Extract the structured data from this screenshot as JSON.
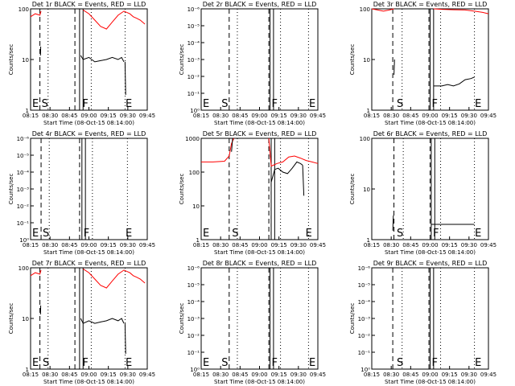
{
  "figure": {
    "panel_titles": [
      "Det 1r BLACK = Events, RED = LLD",
      "Det 2r BLACK = Events, RED = LLD",
      "Det 3r BLACK = Events, RED = LLD",
      "Det 4r BLACK = Events, RED = LLD",
      "Det 5r BLACK = Events, RED = LLD",
      "Det 6r BLACK = Events, RED = LLD",
      "Det 7r BLACK = Events, RED = LLD",
      "Det 8r BLACK = Events, RED = LLD",
      "Det 9r BLACK = Events, RED = LLD"
    ],
    "xlabel": "Start Time (08-Oct-15 08:14:00)",
    "ylabel": "Counts/sec",
    "colors": {
      "events": "#000000",
      "lld": "#ff0000",
      "background": "#ffffff"
    }
  },
  "chart_data": [
    {
      "type": "line",
      "title": "Det 1r BLACK = Events, RED = LLD",
      "ylog": true,
      "yticks": [
        "1",
        "10",
        "100"
      ],
      "ylim": [
        1,
        100
      ],
      "xticks": [
        "08:15",
        "08:30",
        "08:45",
        "09:00",
        "09:15",
        "09:30",
        "09:45"
      ],
      "xlim": [
        0,
        100
      ],
      "markers": [
        {
          "label": "E",
          "x": 0
        },
        {
          "label": "S",
          "x": 8
        },
        {
          "label": "F",
          "x": 43
        },
        {
          "label": "E",
          "x": 80
        }
      ],
      "dashed_lines": [
        8,
        38
      ],
      "solid_lines": [
        42,
        45
      ],
      "dotted_lines": [
        15,
        52,
        81
      ],
      "series": [
        {
          "color": "#ff0000",
          "x": [
            0,
            4,
            8,
            9
          ],
          "y": [
            70,
            80,
            75,
            90
          ]
        },
        {
          "color": "#ff0000",
          "x": [
            45,
            50,
            55,
            60,
            65,
            70,
            75,
            80,
            85,
            88,
            91,
            94,
            98
          ],
          "y": [
            95,
            80,
            60,
            45,
            40,
            55,
            75,
            90,
            80,
            70,
            65,
            60,
            50
          ]
        },
        {
          "color": "#000000",
          "x": [
            8.5,
            8.7
          ],
          "y": [
            12,
            18
          ]
        },
        {
          "color": "#000000",
          "x": [
            43,
            45,
            50,
            55,
            60,
            65,
            70,
            75,
            78,
            80
          ],
          "y": [
            12,
            10,
            11,
            9,
            9.5,
            10,
            11,
            10,
            11,
            9
          ]
        },
        {
          "color": "#000000",
          "x": [
            81,
            81.5
          ],
          "y": [
            9,
            2
          ]
        }
      ]
    },
    {
      "type": "line",
      "title": "Det 2r BLACK = Events, RED = LLD",
      "ylog": true,
      "yticks": [
        "10⁰",
        "10⁻¹",
        "10⁻²",
        "10⁻³",
        "10⁻⁴",
        "10⁻⁵",
        "10⁻⁶"
      ],
      "ylim": [
        0,
        6
      ],
      "xticks": [
        "08:15",
        "08:30",
        "08:45",
        "09:00",
        "09:15",
        "09:30",
        "09:45"
      ],
      "xlim": [
        0,
        100
      ],
      "markers": [
        {
          "label": "E",
          "x": 0
        },
        {
          "label": "S",
          "x": 16
        },
        {
          "label": "F",
          "x": 59
        },
        {
          "label": "E",
          "x": 91
        }
      ],
      "dashed_lines": [
        24,
        58
      ],
      "solid_lines": [
        59,
        62
      ],
      "dotted_lines": [
        31,
        68,
        92
      ],
      "series": []
    },
    {
      "type": "line",
      "title": "Det 3r BLACK = Events, RED = LLD",
      "ylog": true,
      "yticks": [
        "1",
        "10",
        "100"
      ],
      "ylim": [
        1,
        100
      ],
      "xticks": [
        "08:15",
        "08:30",
        "08:45",
        "09:00",
        "09:15",
        "09:30",
        "09:45"
      ],
      "xlim": [
        0,
        100
      ],
      "markers": [
        {
          "label": "S",
          "x": 20
        },
        {
          "label": "F",
          "x": 50
        },
        {
          "label": "E",
          "x": 87
        }
      ],
      "dashed_lines": [
        18,
        49
      ],
      "solid_lines": [
        50,
        53
      ],
      "dotted_lines": [
        26,
        59,
        88
      ],
      "series": [
        {
          "color": "#ff0000",
          "x": [
            0,
            5,
            10,
            15,
            19
          ],
          "y": [
            100,
            95,
            90,
            95,
            100
          ]
        },
        {
          "color": "#ff0000",
          "x": [
            53,
            60,
            70,
            80,
            88,
            95,
            100
          ],
          "y": [
            100,
            98,
            96,
            95,
            90,
            85,
            80
          ]
        },
        {
          "color": "#000000",
          "x": [
            19,
            19.5
          ],
          "y": [
            5,
            10
          ]
        },
        {
          "color": "#000000",
          "x": [
            53,
            60,
            65,
            70,
            75,
            80,
            85,
            88
          ],
          "y": [
            3,
            3,
            3.2,
            3,
            3.3,
            4,
            4.2,
            4.5
          ]
        }
      ]
    },
    {
      "type": "line",
      "title": "Det 4r BLACK = Events, RED = LLD",
      "ylog": true,
      "yticks": [
        "10⁰",
        "10⁻¹",
        "10⁻²",
        "10⁻³",
        "10⁻⁴",
        "10⁻⁵",
        "10⁻⁶"
      ],
      "ylim": [
        0,
        6
      ],
      "xticks": [
        "08:15",
        "08:30",
        "08:45",
        "09:00",
        "09:15",
        "09:30",
        "09:45"
      ],
      "xlim": [
        0,
        100
      ],
      "markers": [
        {
          "label": "E",
          "x": 0
        },
        {
          "label": "S",
          "x": 9
        },
        {
          "label": "F",
          "x": 44
        },
        {
          "label": "E",
          "x": 80
        }
      ],
      "dashed_lines": [
        9,
        42
      ],
      "solid_lines": [
        44,
        47
      ],
      "dotted_lines": [
        16,
        53,
        83
      ],
      "series": []
    },
    {
      "type": "line",
      "title": "Det 5r BLACK = Events, RED = LLD",
      "ylog": true,
      "yticks": [
        "1",
        "10",
        "100",
        "1000"
      ],
      "ylim": [
        1,
        1000
      ],
      "xticks": [
        "08:15",
        "08:30",
        "08:45",
        "09:00",
        "09:15",
        "09:30",
        "09:45"
      ],
      "xlim": [
        0,
        100
      ],
      "markers": [
        {
          "label": "E",
          "x": 0
        },
        {
          "label": "S",
          "x": 25
        },
        {
          "label": "E",
          "x": 88
        }
      ],
      "dashed_lines": [
        24,
        58
      ],
      "solid_lines": [
        60,
        63
      ],
      "dotted_lines": [
        31,
        68,
        92
      ],
      "series": [
        {
          "color": "#ff0000",
          "x": [
            0,
            10,
            20,
            24,
            26,
            28
          ],
          "y": [
            200,
            200,
            210,
            300,
            700,
            1000
          ]
        },
        {
          "color": "#ff0000",
          "x": [
            58,
            60,
            65,
            70,
            75,
            80,
            85,
            90,
            95,
            100
          ],
          "y": [
            1000,
            150,
            180,
            200,
            280,
            300,
            260,
            220,
            200,
            180
          ]
        },
        {
          "color": "#000000",
          "x": [
            26,
            27
          ],
          "y": [
            400,
            1000
          ]
        },
        {
          "color": "#000000",
          "x": [
            60,
            63,
            66,
            70,
            74,
            78,
            82,
            85,
            87
          ],
          "y": [
            50,
            120,
            130,
            100,
            90,
            130,
            200,
            180,
            160
          ]
        },
        {
          "color": "#000000",
          "x": [
            87,
            88
          ],
          "y": [
            160,
            20
          ]
        }
      ]
    },
    {
      "type": "line",
      "title": "Det 6r BLACK = Events, RED = LLD",
      "ylog": true,
      "yticks": [
        "1",
        "10",
        "100"
      ],
      "ylim": [
        1,
        100
      ],
      "xticks": [
        "08:15",
        "08:30",
        "08:45",
        "09:00",
        "09:15",
        "09:30",
        "09:45"
      ],
      "xlim": [
        0,
        100
      ],
      "markers": [
        {
          "label": "S",
          "x": 20
        },
        {
          "label": "F",
          "x": 51
        },
        {
          "label": "E",
          "x": 87
        }
      ],
      "dashed_lines": [
        19,
        50
      ],
      "solid_lines": [
        51,
        54
      ],
      "dotted_lines": [
        27,
        59,
        88
      ],
      "series": [
        {
          "color": "#000000",
          "x": [
            18,
            18.5
          ],
          "y": [
            1.5,
            3
          ]
        },
        {
          "color": "#000000",
          "x": [
            51,
            88
          ],
          "y": [
            2,
            2
          ]
        }
      ]
    },
    {
      "type": "line",
      "title": "Det 7r BLACK = Events, RED = LLD",
      "ylog": true,
      "yticks": [
        "1",
        "10",
        "100"
      ],
      "ylim": [
        1,
        100
      ],
      "xticks": [
        "08:15",
        "08:30",
        "08:45",
        "09:00",
        "09:15",
        "09:30",
        "09:45"
      ],
      "xlim": [
        0,
        100
      ],
      "markers": [
        {
          "label": "E",
          "x": 0
        },
        {
          "label": "S",
          "x": 9
        },
        {
          "label": "F",
          "x": 43
        },
        {
          "label": "E",
          "x": 80
        }
      ],
      "dashed_lines": [
        8,
        38
      ],
      "solid_lines": [
        42,
        45
      ],
      "dotted_lines": [
        15,
        52,
        81
      ],
      "series": [
        {
          "color": "#ff0000",
          "x": [
            0,
            4,
            8,
            9
          ],
          "y": [
            70,
            80,
            75,
            90
          ]
        },
        {
          "color": "#ff0000",
          "x": [
            45,
            50,
            55,
            60,
            65,
            70,
            75,
            80,
            85,
            88,
            91,
            94,
            98
          ],
          "y": [
            95,
            80,
            60,
            45,
            40,
            55,
            75,
            90,
            80,
            70,
            65,
            60,
            50
          ]
        },
        {
          "color": "#000000",
          "x": [
            8.5,
            8.7
          ],
          "y": [
            12,
            18
          ]
        },
        {
          "color": "#000000",
          "x": [
            43,
            45,
            50,
            55,
            60,
            65,
            70,
            75,
            78,
            80
          ],
          "y": [
            10,
            8,
            9,
            8,
            8.5,
            9,
            10,
            9,
            10,
            8
          ]
        },
        {
          "color": "#000000",
          "x": [
            81,
            81.5
          ],
          "y": [
            8,
            2
          ]
        }
      ]
    },
    {
      "type": "line",
      "title": "Det 8r BLACK = Events, RED = LLD",
      "ylog": true,
      "yticks": [
        "10⁰",
        "10⁻¹",
        "10⁻²",
        "10⁻³",
        "10⁻⁴",
        "10⁻⁵",
        "10⁻⁶"
      ],
      "ylim": [
        0,
        6
      ],
      "xticks": [
        "08:15",
        "08:30",
        "08:45",
        "09:00",
        "09:15",
        "09:30",
        "09:45"
      ],
      "xlim": [
        0,
        100
      ],
      "markers": [
        {
          "label": "E",
          "x": 0
        },
        {
          "label": "S",
          "x": 16
        },
        {
          "label": "F",
          "x": 59
        },
        {
          "label": "E",
          "x": 91
        }
      ],
      "dashed_lines": [
        24,
        58
      ],
      "solid_lines": [
        59,
        62
      ],
      "dotted_lines": [
        31,
        68,
        92
      ],
      "series": []
    },
    {
      "type": "line",
      "title": "Det 9r BLACK = Events, RED = LLD",
      "ylog": true,
      "yticks": [
        "10⁰",
        "10⁻¹",
        "10⁻²",
        "10⁻³",
        "10⁻⁴",
        "10⁻⁵",
        "10⁻⁶"
      ],
      "ylim": [
        0,
        6
      ],
      "xticks": [
        "08:15",
        "08:30",
        "08:45",
        "09:00",
        "09:15",
        "09:30",
        "09:45"
      ],
      "xlim": [
        0,
        100
      ],
      "markers": [
        {
          "label": "S",
          "x": 20
        },
        {
          "label": "F",
          "x": 50
        },
        {
          "label": "E",
          "x": 87
        }
      ],
      "dashed_lines": [
        18,
        49
      ],
      "solid_lines": [
        50,
        53
      ],
      "dotted_lines": [
        26,
        59,
        88
      ],
      "series": []
    }
  ]
}
